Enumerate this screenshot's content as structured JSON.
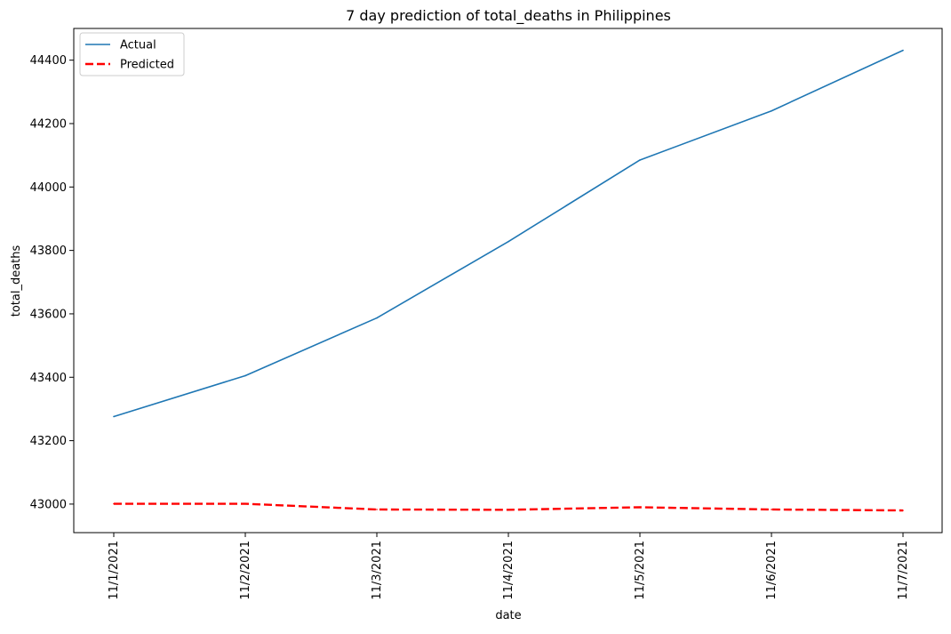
{
  "chart_data": {
    "type": "line",
    "title": "7 day prediction of total_deaths in Philippines",
    "xlabel": "date",
    "ylabel": "total_deaths",
    "categories": [
      "11/1/2021",
      "11/2/2021",
      "11/3/2021",
      "11/4/2021",
      "11/5/2021",
      "11/6/2021",
      "11/7/2021"
    ],
    "yticks": [
      43000,
      43200,
      43400,
      43600,
      43800,
      44000,
      44200,
      44400
    ],
    "ylim": [
      42910,
      44500
    ],
    "grid": false,
    "legend_position": "top-left",
    "series": [
      {
        "name": "Actual",
        "values": [
          43276,
          43405,
          43587,
          43828,
          44085,
          44240,
          44431
        ],
        "color": "#1f77b4",
        "style": "solid"
      },
      {
        "name": "Predicted",
        "values": [
          43001,
          43001,
          42983,
          42982,
          42990,
          42983,
          42980
        ],
        "color": "#ff0000",
        "style": "dashed"
      }
    ]
  }
}
